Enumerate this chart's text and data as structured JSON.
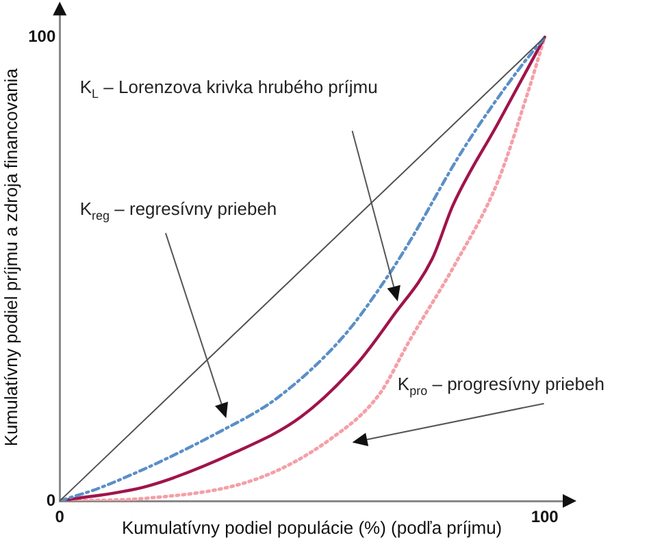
{
  "chart_data": {
    "type": "line",
    "xlabel": "Kumulatívny podiel populácie (%) (podľa príjmu)",
    "ylabel": "Kumulatívny podiel príjmu a zdroja financovania",
    "xlim": [
      0,
      104
    ],
    "ylim": [
      0,
      105
    ],
    "xticks": [
      0,
      100
    ],
    "yticks": [
      0,
      100
    ],
    "grid": false,
    "legend": false,
    "marker": "none",
    "series": [
      {
        "color": "#505050",
        "line_style": "solid",
        "x": [
          0,
          100
        ],
        "values": [
          0,
          100
        ]
      },
      {
        "color": "#5b8fc7",
        "line_style": "dashed",
        "x": [
          0,
          9.2,
          33.5,
          45.1,
          58.6,
          67.6,
          72.2,
          83,
          94.6,
          100
        ],
        "values": [
          0,
          3.2,
          15.2,
          22.4,
          35.6,
          48.4,
          56,
          75.5,
          93,
          100
        ]
      },
      {
        "color": "#a0144a",
        "line_style": "solid",
        "x": [
          0,
          18.1,
          36.2,
          49.7,
          61.4,
          68.6,
          76.8,
          81.1,
          90.3,
          100
        ],
        "values": [
          0,
          3.2,
          10.5,
          18.1,
          29.7,
          39.7,
          52.2,
          63.8,
          81.3,
          100
        ]
      },
      {
        "color": "#f4a0a8",
        "line_style": "dotted",
        "x": [
          0,
          18.1,
          40.5,
          55.9,
          65.9,
          72.2,
          81.5,
          90.3,
          96.5,
          100
        ],
        "values": [
          0,
          0.6,
          4.7,
          13.4,
          23,
          34.7,
          51,
          68.8,
          88,
          100
        ]
      }
    ],
    "annotations": [
      "K$_{L}$ – Lorenzova krivka hrubého príjmu",
      "K$_{reg}$ – regresívny priebeh",
      "K$_{pro}$ – progresívny priebeh"
    ]
  }
}
